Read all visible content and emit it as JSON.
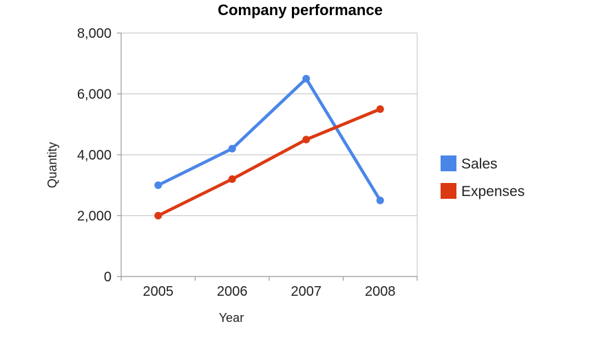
{
  "chart_data": {
    "type": "line",
    "title": "Company performance",
    "xlabel": "Year",
    "ylabel": "Quantity",
    "categories": [
      "2005",
      "2006",
      "2007",
      "2008"
    ],
    "yticks": [
      "0",
      "2,000",
      "4,000",
      "6,000",
      "8,000"
    ],
    "ylim": [
      0,
      8000
    ],
    "grid": true,
    "legend_position": "right",
    "series": [
      {
        "name": "Sales",
        "color": "#4a86e8",
        "values": [
          3000,
          4200,
          6500,
          2500
        ]
      },
      {
        "name": "Expenses",
        "color": "#dc3912",
        "values": [
          2000,
          3200,
          4500,
          5500
        ]
      }
    ]
  }
}
